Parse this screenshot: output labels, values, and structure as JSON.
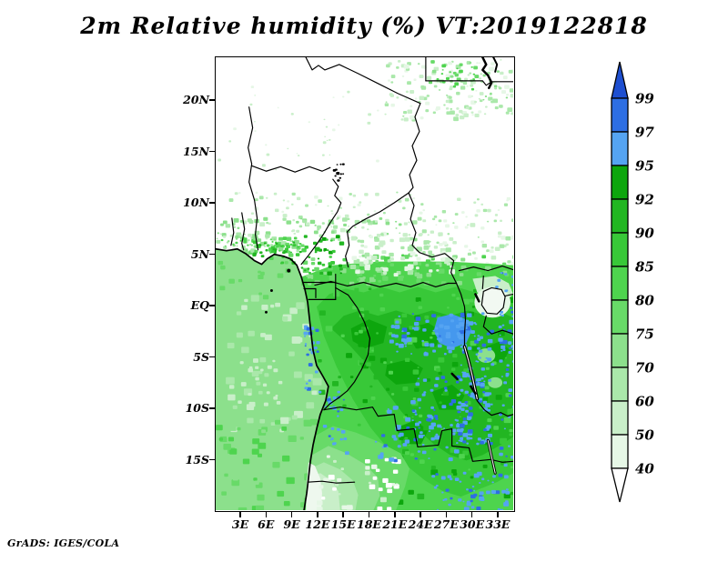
{
  "title": "2m Relative humidity (%) VT:2019122818",
  "attribution": "GrADS: IGES/COLA",
  "axes": {
    "y_labels": [
      "20N",
      "15N",
      "10N",
      "5N",
      "EQ",
      "5S",
      "10S",
      "15S"
    ],
    "x_labels": [
      "3E",
      "6E",
      "9E",
      "12E",
      "15E",
      "18E",
      "21E",
      "24E",
      "27E",
      "30E",
      "33E"
    ]
  },
  "colorbar": {
    "boundary_labels": [
      "99",
      "97",
      "95",
      "92",
      "90",
      "85",
      "80",
      "75",
      "70",
      "60",
      "50",
      "40"
    ],
    "segment_colors": [
      "#2d6ee3",
      "#55a4f2",
      "#0da60d",
      "#22b622",
      "#38c838",
      "#4ed44e",
      "#68da68",
      "#8ce08c",
      "#aae8aa",
      "#c9efc9",
      "#e6f7e6"
    ],
    "above_max_color": "#1e4fd0",
    "below_min_color": "#ffffff"
  },
  "map_palette": {
    "background": "#ffffff",
    "lt40": "#ffffff",
    "p40_50": "#e6f7e6",
    "p50_60": "#c9efc9",
    "p60_70": "#aae8aa",
    "p70_75": "#8ce08c",
    "p75_80": "#68da68",
    "p80_85": "#4ed44e",
    "p85_90": "#38c838",
    "p90_92": "#22b622",
    "p92_95": "#0da60d",
    "p95_97": "#55a4f2",
    "p97_99": "#2d6ee3",
    "gt99": "#1e4fd0",
    "border": "#000000",
    "lake_fill": "#f2f9f2"
  },
  "chart_data": {
    "type": "heatmap",
    "title": "2m Relative humidity (%) VT:2019122818",
    "variable": "2m relative humidity",
    "units": "%",
    "valid_time_label": "VT:2019122818",
    "x_ticks": [
      "3E",
      "6E",
      "9E",
      "12E",
      "15E",
      "18E",
      "21E",
      "24E",
      "27E",
      "30E",
      "33E"
    ],
    "y_ticks": [
      "20N",
      "15N",
      "10N",
      "5N",
      "EQ",
      "5S",
      "10S",
      "15S"
    ],
    "contour_levels": [
      40,
      50,
      60,
      70,
      75,
      80,
      85,
      90,
      92,
      95,
      97,
      99
    ],
    "level_colors_low_to_high": [
      "#ffffff",
      "#e6f7e6",
      "#c9efc9",
      "#aae8aa",
      "#8ce08c",
      "#68da68",
      "#4ed44e",
      "#38c838",
      "#22b622",
      "#0da60d",
      "#55a4f2",
      "#2d6ee3",
      "#1e4fd0"
    ],
    "legend_position": "right vertical colorbar with arrowed ends",
    "grid": false,
    "regions_summary": [
      {
        "region": "Sahara and Sahel north of ~10N",
        "value": "below 40 (white)"
      },
      {
        "region": "Northeast corner (Sudan/Egypt)",
        "value": "scattered 40-70 patches"
      },
      {
        "region": "West African coast transition 5N-10N",
        "value": "40-80 gradient increasing toward coast"
      },
      {
        "region": "Atlantic Ocean / Gulf of Guinea",
        "value": "60-80 mostly uniform light green"
      },
      {
        "region": "Congo basin and East Africa",
        "value": "85-95 dark green"
      },
      {
        "region": "Equatorial band ~15E-34E, EQ-12S",
        "value": "95-99 blue patches"
      },
      {
        "region": "Southwest Angola / Namibia coastal strip",
        "value": "40-60 with white strip below 40"
      },
      {
        "region": "Lakes Victoria, Tanganyika, Malawi, Chad",
        "value": "drawn with black outlines"
      }
    ],
    "attribution": "GrADS: IGES/COLA"
  }
}
